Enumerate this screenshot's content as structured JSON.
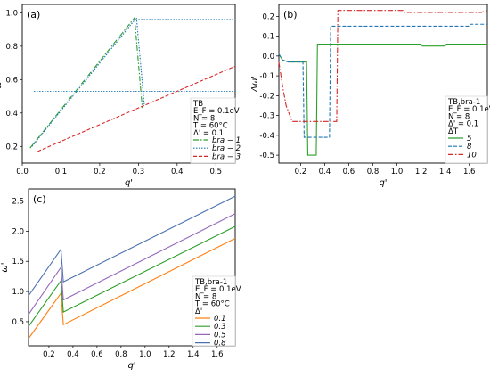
{
  "chart_data": [
    {
      "id": "a",
      "type": "line",
      "panel_label": "(a)",
      "xlabel": "q'",
      "ylabel": "ω'",
      "xlim": [
        0.0,
        0.55
      ],
      "ylim": [
        0.1,
        1.05
      ],
      "xticks": [
        "0.0",
        "0.1",
        "0.2",
        "0.3",
        "0.4",
        "0.5"
      ],
      "xtick_values": [
        0.0,
        0.1,
        0.2,
        0.3,
        0.4,
        0.5
      ],
      "yticks": [
        "0.2",
        "0.4",
        "0.6",
        "0.8",
        "1.0"
      ],
      "ytick_values": [
        0.2,
        0.4,
        0.6,
        0.8,
        1.0
      ],
      "legend_placement": "right",
      "legend_title": [
        "TB",
        "E_F = 0.1eV",
        "N = 8",
        "T = 60°C",
        "Δ' = 0.1"
      ],
      "series": [
        {
          "name": "bra − 1",
          "color": "#2ca02c",
          "dash": "6,2,1.5,2",
          "x": [
            0.02,
            0.29,
            0.31
          ],
          "y": [
            0.19,
            0.97,
            0.43
          ]
        },
        {
          "name": "bra − 2",
          "color": "#1f77b4",
          "dash": "1.5,1.5",
          "x": [
            0.025,
            0.295,
            0.315
          ],
          "y": [
            0.2,
            0.97,
            0.45
          ]
        },
        {
          "name": "bra − 3",
          "color": "#d62728",
          "dash": "4,2",
          "x": [
            0.04,
            0.3,
            0.55
          ],
          "y": [
            0.17,
            0.43,
            0.68
          ]
        }
      ],
      "reference_lines": [
        {
          "color": "#1f77b4",
          "dash": "1.5,1.5",
          "x": [
            0.03,
            0.55
          ],
          "y": [
            0.53,
            0.53
          ]
        },
        {
          "color": "#1f77b4",
          "dash": "1.5,1.5",
          "x": [
            0.3,
            0.55
          ],
          "y": [
            0.96,
            0.96
          ]
        }
      ]
    },
    {
      "id": "b",
      "type": "line",
      "panel_label": "(b)",
      "xlabel": "q'",
      "ylabel": "Δω'",
      "xlim": [
        0.02,
        1.75
      ],
      "ylim": [
        -0.54,
        0.26
      ],
      "xticks": [
        "0.2",
        "0.4",
        "0.6",
        "0.8",
        "1.0",
        "1.2",
        "1.4",
        "1.6"
      ],
      "xtick_values": [
        0.2,
        0.4,
        0.6,
        0.8,
        1.0,
        1.2,
        1.4,
        1.6
      ],
      "yticks": [
        "0.2",
        "0.1",
        "0.0",
        "-0.1",
        "-0.2",
        "-0.3",
        "-0.4",
        "-0.5"
      ],
      "ytick_values": [
        0.2,
        0.1,
        0.0,
        -0.1,
        -0.2,
        -0.3,
        -0.4,
        -0.5
      ],
      "legend_placement": "right",
      "legend_title": [
        "TB,bra-1",
        "E_F = 0.1eV",
        "N = 8",
        "Δ' = 0.1",
        "ΔT"
      ],
      "series": [
        {
          "name": "5",
          "color": "#2ca02c",
          "dash": "",
          "x": [
            0.02,
            0.05,
            0.1,
            0.25,
            0.26,
            0.3,
            0.33,
            0.34,
            1.2,
            1.21,
            1.4,
            1.41,
            1.75
          ],
          "y": [
            0.01,
            -0.02,
            -0.03,
            -0.03,
            -0.5,
            -0.5,
            -0.5,
            0.06,
            0.06,
            0.05,
            0.05,
            0.06,
            0.06
          ]
        },
        {
          "name": "8",
          "color": "#1f77b4",
          "dash": "4,2",
          "x": [
            0.02,
            0.05,
            0.1,
            0.22,
            0.23,
            0.3,
            0.44,
            0.45,
            1.6,
            1.61,
            1.75
          ],
          "y": [
            0.01,
            -0.02,
            -0.03,
            -0.03,
            -0.41,
            -0.41,
            -0.41,
            0.15,
            0.15,
            0.16,
            0.16
          ]
        },
        {
          "name": "10",
          "color": "#d62728",
          "dash": "6,2,1.5,2",
          "x": [
            0.02,
            0.05,
            0.08,
            0.13,
            0.3,
            0.5,
            0.51,
            1.05,
            1.06,
            1.7,
            1.75
          ],
          "y": [
            -0.03,
            -0.15,
            -0.25,
            -0.33,
            -0.33,
            -0.33,
            0.23,
            0.23,
            0.22,
            0.22,
            0.23
          ]
        }
      ]
    },
    {
      "id": "c",
      "type": "line",
      "panel_label": "(c)",
      "xlabel": "q'",
      "ylabel": "ω'",
      "xlim": [
        0.03,
        1.75
      ],
      "ylim": [
        0.1,
        2.7
      ],
      "xticks": [
        "0.2",
        "0.4",
        "0.6",
        "0.8",
        "1.0",
        "1.2",
        "1.4",
        "1.6"
      ],
      "xtick_values": [
        0.2,
        0.4,
        0.6,
        0.8,
        1.0,
        1.2,
        1.4,
        1.6
      ],
      "yticks": [
        "0.5",
        "1.0",
        "1.5",
        "2.0",
        "2.5"
      ],
      "ytick_values": [
        0.5,
        1.0,
        1.5,
        2.0,
        2.5
      ],
      "legend_placement": "right",
      "legend_title": [
        "TB,bra-1",
        "E_F = 0.1eV",
        "N = 8",
        "T = 60°C",
        "Δ'"
      ],
      "series": [
        {
          "name": "0.1",
          "color": "#ff7f0e",
          "dash": "",
          "x": [
            0.03,
            0.3,
            0.32,
            1.75
          ],
          "y": [
            0.22,
            0.97,
            0.45,
            1.88
          ]
        },
        {
          "name": "0.3",
          "color": "#2ca02c",
          "dash": "",
          "x": [
            0.03,
            0.3,
            0.32,
            1.75
          ],
          "y": [
            0.42,
            1.18,
            0.66,
            2.08
          ]
        },
        {
          "name": "0.5",
          "color": "#9467bd",
          "dash": "",
          "x": [
            0.03,
            0.3,
            0.32,
            1.75
          ],
          "y": [
            0.62,
            1.4,
            0.86,
            2.29
          ]
        },
        {
          "name": "0.8",
          "color": "#4c72b0",
          "dash": "",
          "x": [
            0.03,
            0.3,
            0.32,
            1.75
          ],
          "y": [
            0.93,
            1.7,
            1.16,
            2.58
          ]
        }
      ]
    }
  ]
}
